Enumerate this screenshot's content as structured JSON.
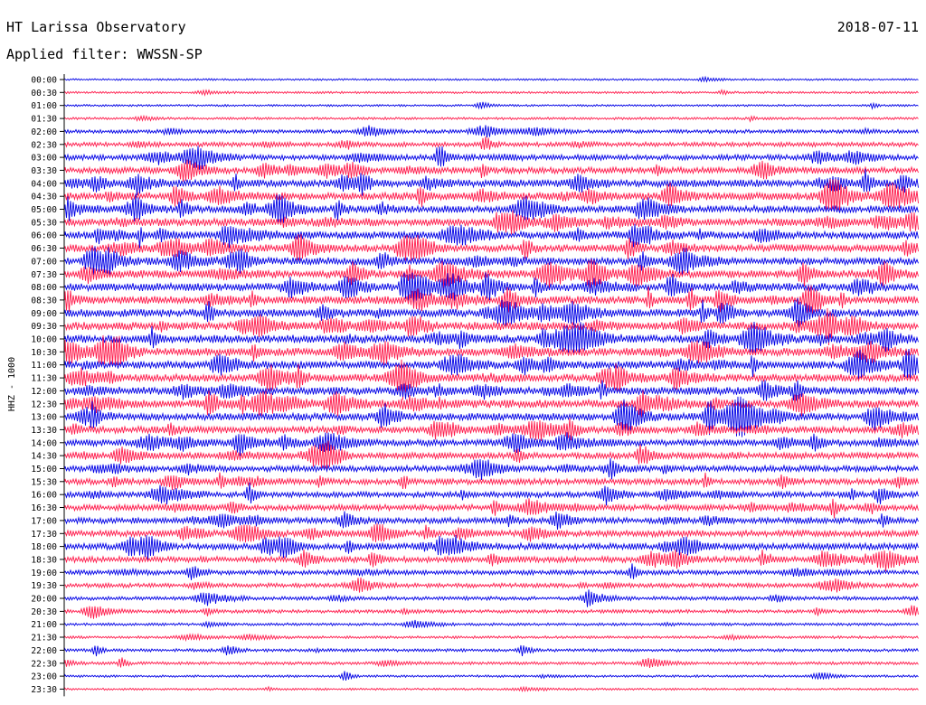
{
  "header": {
    "station": "HT Larissa Observatory",
    "date": "2018-07-11",
    "filter": "Applied filter: WWSSN-SP"
  },
  "chart_data": {
    "type": "line",
    "title": "HT Larissa Observatory",
    "subtitle": "Applied filter: WWSSN-SP",
    "ylabel": "HHZ - 1000",
    "xlabel": "",
    "grid": false,
    "legend": "none",
    "colors": {
      "even_rows": "#0000e6",
      "odd_rows": "#ff1a4b",
      "frame": "#000000"
    },
    "rows": [
      {
        "label": "00:00",
        "activity": 0.06
      },
      {
        "label": "00:30",
        "activity": 0.1
      },
      {
        "label": "01:00",
        "activity": 0.08
      },
      {
        "label": "01:30",
        "activity": 0.14
      },
      {
        "label": "02:00",
        "activity": 0.3
      },
      {
        "label": "02:30",
        "activity": 0.42
      },
      {
        "label": "03:00",
        "activity": 0.55
      },
      {
        "label": "03:30",
        "activity": 0.65
      },
      {
        "label": "04:00",
        "activity": 0.8
      },
      {
        "label": "04:30",
        "activity": 0.82
      },
      {
        "label": "05:00",
        "activity": 0.8
      },
      {
        "label": "05:30",
        "activity": 0.85
      },
      {
        "label": "06:00",
        "activity": 0.82
      },
      {
        "label": "06:30",
        "activity": 0.8
      },
      {
        "label": "07:00",
        "activity": 0.82
      },
      {
        "label": "07:30",
        "activity": 0.85
      },
      {
        "label": "08:00",
        "activity": 0.88
      },
      {
        "label": "08:30",
        "activity": 0.85
      },
      {
        "label": "09:00",
        "activity": 0.86
      },
      {
        "label": "09:30",
        "activity": 0.88
      },
      {
        "label": "10:00",
        "activity": 0.9
      },
      {
        "label": "10:30",
        "activity": 0.86
      },
      {
        "label": "11:00",
        "activity": 0.85
      },
      {
        "label": "11:30",
        "activity": 0.82
      },
      {
        "label": "12:00",
        "activity": 0.85
      },
      {
        "label": "12:30",
        "activity": 0.9
      },
      {
        "label": "13:00",
        "activity": 0.82
      },
      {
        "label": "13:30",
        "activity": 0.72
      },
      {
        "label": "14:00",
        "activity": 0.7
      },
      {
        "label": "14:30",
        "activity": 0.65
      },
      {
        "label": "15:00",
        "activity": 0.62
      },
      {
        "label": "15:30",
        "activity": 0.6
      },
      {
        "label": "16:00",
        "activity": 0.58
      },
      {
        "label": "16:30",
        "activity": 0.62
      },
      {
        "label": "17:00",
        "activity": 0.6
      },
      {
        "label": "17:30",
        "activity": 0.65
      },
      {
        "label": "18:00",
        "activity": 0.66
      },
      {
        "label": "18:30",
        "activity": 0.62
      },
      {
        "label": "19:00",
        "activity": 0.45
      },
      {
        "label": "19:30",
        "activity": 0.4
      },
      {
        "label": "20:00",
        "activity": 0.32
      },
      {
        "label": "20:30",
        "activity": 0.28
      },
      {
        "label": "21:00",
        "activity": 0.18
      },
      {
        "label": "21:30",
        "activity": 0.16
      },
      {
        "label": "22:00",
        "activity": 0.22
      },
      {
        "label": "22:30",
        "activity": 0.2
      },
      {
        "label": "23:00",
        "activity": 0.12
      },
      {
        "label": "23:30",
        "activity": 0.1
      }
    ]
  }
}
